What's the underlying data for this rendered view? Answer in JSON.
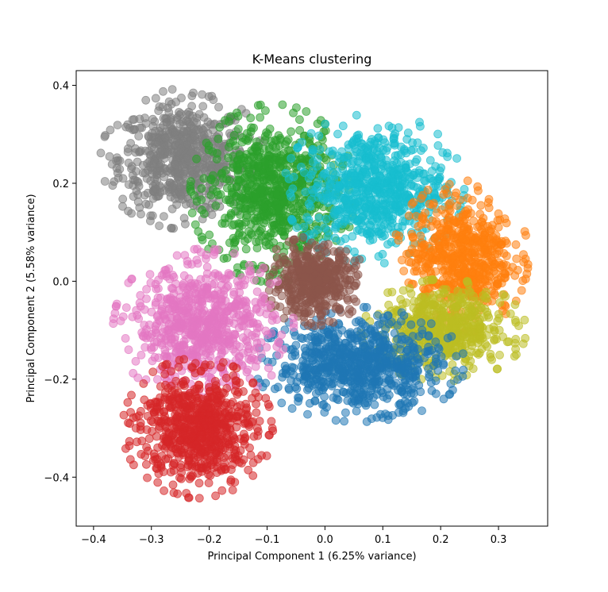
{
  "chart_data": {
    "type": "scatter",
    "title": "K-Means clustering",
    "xlabel": "Principal Component 1 (6.25% variance)",
    "ylabel": "Principal Component 2 (5.58% variance)",
    "xlim": [
      -0.43,
      0.385
    ],
    "ylim": [
      -0.5,
      0.43
    ],
    "xticks": [
      -0.4,
      -0.3,
      -0.2,
      -0.1,
      0.0,
      0.1,
      0.2,
      0.3
    ],
    "xtick_labels": [
      "−0.4",
      "−0.3",
      "−0.2",
      "−0.1",
      "0.0",
      "0.1",
      "0.2",
      "0.3"
    ],
    "yticks": [
      -0.4,
      -0.2,
      0.0,
      0.2,
      0.4
    ],
    "ytick_labels": [
      "−0.4",
      "−0.2",
      "0.0",
      "0.2",
      "0.4"
    ],
    "grid": false,
    "marker_alpha": 0.55,
    "clusters": [
      {
        "color": "#7f7f7f",
        "center": [
          -0.245,
          0.25
        ],
        "spread": [
          0.055,
          0.055
        ],
        "count": 650
      },
      {
        "color": "#2ca02c",
        "center": [
          -0.09,
          0.18
        ],
        "spread": [
          0.055,
          0.07
        ],
        "count": 750
      },
      {
        "color": "#17becf",
        "center": [
          0.085,
          0.19
        ],
        "spread": [
          0.06,
          0.06
        ],
        "count": 700
      },
      {
        "color": "#ff7f0e",
        "center": [
          0.235,
          0.05
        ],
        "spread": [
          0.045,
          0.06
        ],
        "count": 600
      },
      {
        "color": "#bcbd22",
        "center": [
          0.205,
          -0.1
        ],
        "spread": [
          0.055,
          0.04
        ],
        "count": 550
      },
      {
        "color": "#1f77b4",
        "center": [
          0.06,
          -0.17
        ],
        "spread": [
          0.07,
          0.045
        ],
        "count": 750
      },
      {
        "color": "#8c564b",
        "center": [
          -0.02,
          0.0
        ],
        "spread": [
          0.035,
          0.035
        ],
        "count": 450
      },
      {
        "color": "#e377c2",
        "center": [
          -0.21,
          -0.09
        ],
        "spread": [
          0.06,
          0.06
        ],
        "count": 700
      },
      {
        "color": "#d62728",
        "center": [
          -0.22,
          -0.3
        ],
        "spread": [
          0.05,
          0.055
        ],
        "count": 700
      }
    ]
  }
}
